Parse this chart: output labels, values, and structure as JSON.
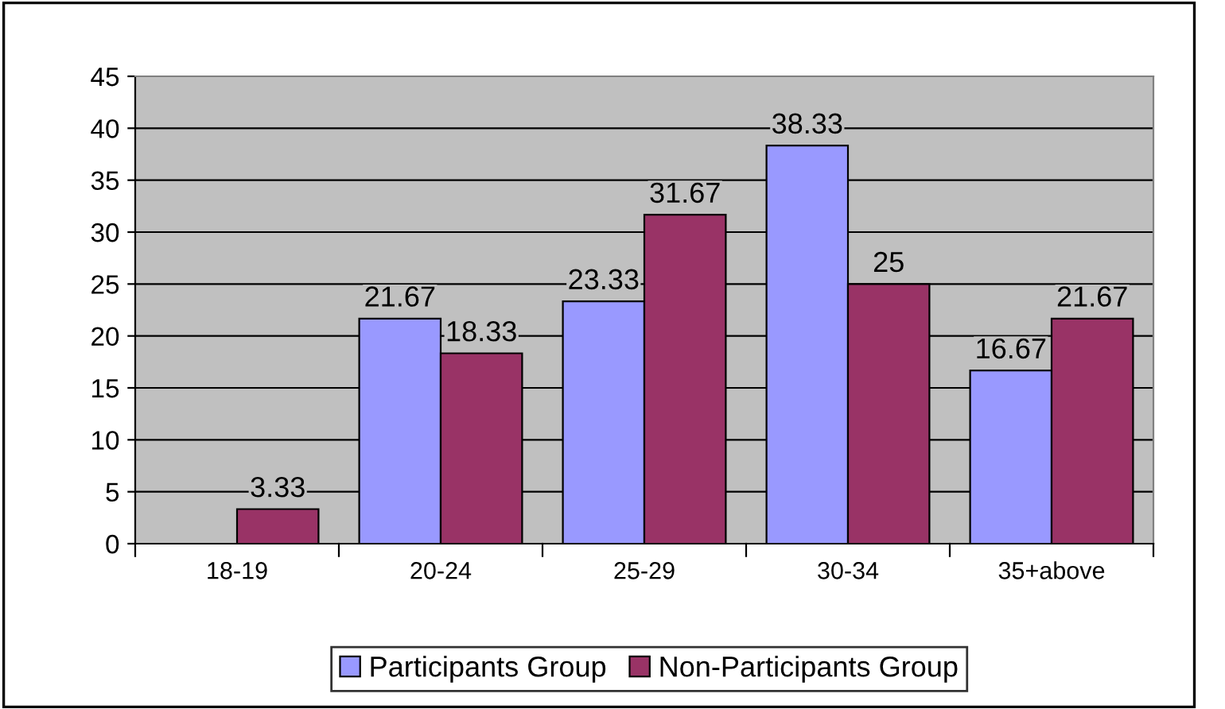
{
  "chart_data": {
    "type": "bar",
    "categories": [
      "18-19",
      "20-24",
      "25-29",
      "30-34",
      "35+above"
    ],
    "series": [
      {
        "name": "Participants Group",
        "color": "#9999ff",
        "values": [
          null,
          21.67,
          23.33,
          38.33,
          16.67
        ]
      },
      {
        "name": "Non-Participants Group",
        "color": "#993366",
        "values": [
          3.33,
          18.33,
          31.67,
          25,
          21.67
        ]
      }
    ],
    "ylim": [
      0,
      45
    ],
    "yticks": [
      0,
      5,
      10,
      15,
      20,
      25,
      30,
      35,
      40,
      45
    ],
    "grid": "y",
    "legend": "bottom",
    "data_labels": true
  }
}
